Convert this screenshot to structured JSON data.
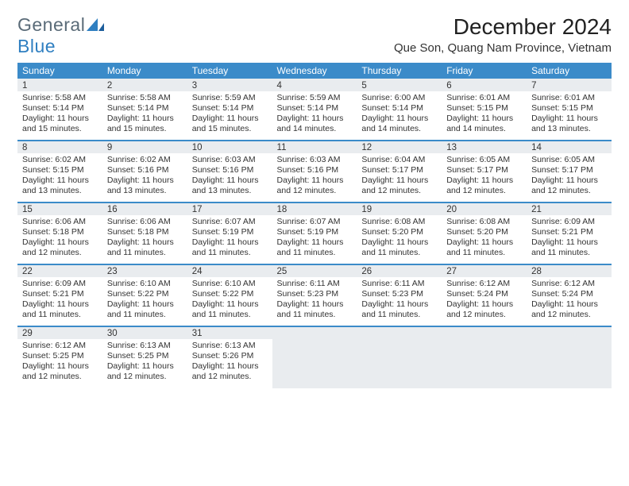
{
  "branding": {
    "name_part1": "General",
    "name_part2": "Blue",
    "text_color": "#5a6b78",
    "accent_color": "#2f7fc1"
  },
  "title": "December 2024",
  "location": "Que Son, Quang Nam Province, Vietnam",
  "colors": {
    "header_bg": "#3b8bc9",
    "header_text": "#ffffff",
    "daynum_bg": "#e9ecef",
    "divider": "#3b8bc9",
    "page_bg": "#ffffff",
    "body_text": "#333333"
  },
  "dow": [
    "Sunday",
    "Monday",
    "Tuesday",
    "Wednesday",
    "Thursday",
    "Friday",
    "Saturday"
  ],
  "weeks": [
    [
      {
        "n": "1",
        "sr": "5:58 AM",
        "ss": "5:14 PM",
        "dl": "11 hours and 15 minutes."
      },
      {
        "n": "2",
        "sr": "5:58 AM",
        "ss": "5:14 PM",
        "dl": "11 hours and 15 minutes."
      },
      {
        "n": "3",
        "sr": "5:59 AM",
        "ss": "5:14 PM",
        "dl": "11 hours and 15 minutes."
      },
      {
        "n": "4",
        "sr": "5:59 AM",
        "ss": "5:14 PM",
        "dl": "11 hours and 14 minutes."
      },
      {
        "n": "5",
        "sr": "6:00 AM",
        "ss": "5:14 PM",
        "dl": "11 hours and 14 minutes."
      },
      {
        "n": "6",
        "sr": "6:01 AM",
        "ss": "5:15 PM",
        "dl": "11 hours and 14 minutes."
      },
      {
        "n": "7",
        "sr": "6:01 AM",
        "ss": "5:15 PM",
        "dl": "11 hours and 13 minutes."
      }
    ],
    [
      {
        "n": "8",
        "sr": "6:02 AM",
        "ss": "5:15 PM",
        "dl": "11 hours and 13 minutes."
      },
      {
        "n": "9",
        "sr": "6:02 AM",
        "ss": "5:16 PM",
        "dl": "11 hours and 13 minutes."
      },
      {
        "n": "10",
        "sr": "6:03 AM",
        "ss": "5:16 PM",
        "dl": "11 hours and 13 minutes."
      },
      {
        "n": "11",
        "sr": "6:03 AM",
        "ss": "5:16 PM",
        "dl": "11 hours and 12 minutes."
      },
      {
        "n": "12",
        "sr": "6:04 AM",
        "ss": "5:17 PM",
        "dl": "11 hours and 12 minutes."
      },
      {
        "n": "13",
        "sr": "6:05 AM",
        "ss": "5:17 PM",
        "dl": "11 hours and 12 minutes."
      },
      {
        "n": "14",
        "sr": "6:05 AM",
        "ss": "5:17 PM",
        "dl": "11 hours and 12 minutes."
      }
    ],
    [
      {
        "n": "15",
        "sr": "6:06 AM",
        "ss": "5:18 PM",
        "dl": "11 hours and 12 minutes."
      },
      {
        "n": "16",
        "sr": "6:06 AM",
        "ss": "5:18 PM",
        "dl": "11 hours and 11 minutes."
      },
      {
        "n": "17",
        "sr": "6:07 AM",
        "ss": "5:19 PM",
        "dl": "11 hours and 11 minutes."
      },
      {
        "n": "18",
        "sr": "6:07 AM",
        "ss": "5:19 PM",
        "dl": "11 hours and 11 minutes."
      },
      {
        "n": "19",
        "sr": "6:08 AM",
        "ss": "5:20 PM",
        "dl": "11 hours and 11 minutes."
      },
      {
        "n": "20",
        "sr": "6:08 AM",
        "ss": "5:20 PM",
        "dl": "11 hours and 11 minutes."
      },
      {
        "n": "21",
        "sr": "6:09 AM",
        "ss": "5:21 PM",
        "dl": "11 hours and 11 minutes."
      }
    ],
    [
      {
        "n": "22",
        "sr": "6:09 AM",
        "ss": "5:21 PM",
        "dl": "11 hours and 11 minutes."
      },
      {
        "n": "23",
        "sr": "6:10 AM",
        "ss": "5:22 PM",
        "dl": "11 hours and 11 minutes."
      },
      {
        "n": "24",
        "sr": "6:10 AM",
        "ss": "5:22 PM",
        "dl": "11 hours and 11 minutes."
      },
      {
        "n": "25",
        "sr": "6:11 AM",
        "ss": "5:23 PM",
        "dl": "11 hours and 11 minutes."
      },
      {
        "n": "26",
        "sr": "6:11 AM",
        "ss": "5:23 PM",
        "dl": "11 hours and 11 minutes."
      },
      {
        "n": "27",
        "sr": "6:12 AM",
        "ss": "5:24 PM",
        "dl": "11 hours and 12 minutes."
      },
      {
        "n": "28",
        "sr": "6:12 AM",
        "ss": "5:24 PM",
        "dl": "11 hours and 12 minutes."
      }
    ],
    [
      {
        "n": "29",
        "sr": "6:12 AM",
        "ss": "5:25 PM",
        "dl": "11 hours and 12 minutes."
      },
      {
        "n": "30",
        "sr": "6:13 AM",
        "ss": "5:25 PM",
        "dl": "11 hours and 12 minutes."
      },
      {
        "n": "31",
        "sr": "6:13 AM",
        "ss": "5:26 PM",
        "dl": "11 hours and 12 minutes."
      },
      null,
      null,
      null,
      null
    ]
  ],
  "labels": {
    "sunrise": "Sunrise: ",
    "sunset": "Sunset: ",
    "daylight": "Daylight: "
  }
}
